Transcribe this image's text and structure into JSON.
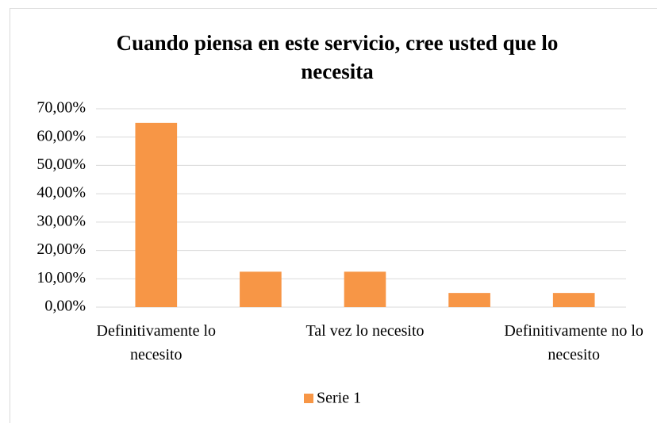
{
  "chart_data": {
    "type": "bar",
    "title": "Cuando piensa en este servicio, cree usted que lo necesita",
    "categories": [
      "Definitivamente lo necesito",
      null,
      "Tal vez lo necesito",
      null,
      "Definitivamente no lo necesito"
    ],
    "series": [
      {
        "name": "Serie 1",
        "color": "#f79646",
        "values": [
          65,
          12.5,
          12.5,
          5,
          5
        ]
      }
    ],
    "ylim": [
      0,
      70
    ],
    "yticks": [
      {
        "value": 0,
        "label": "0,00%"
      },
      {
        "value": 10,
        "label": "10,00%"
      },
      {
        "value": 20,
        "label": "20,00%"
      },
      {
        "value": 30,
        "label": "30,00%"
      },
      {
        "value": 40,
        "label": "40,00%"
      },
      {
        "value": 50,
        "label": "50,00%"
      },
      {
        "value": 60,
        "label": "60,00%"
      },
      {
        "value": 70,
        "label": "70,00%"
      }
    ],
    "grid": true,
    "legend": "bottom"
  }
}
